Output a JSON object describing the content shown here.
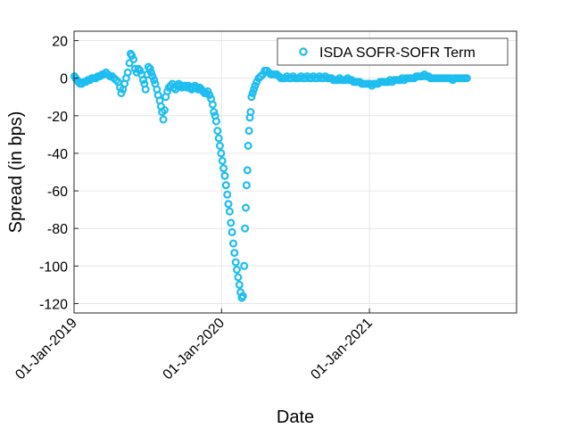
{
  "chart_data": {
    "type": "scatter",
    "title": "",
    "xlabel": "Date",
    "ylabel": "Spread (in bps)",
    "x_tick_labels": [
      "01-Jan-2019",
      "01-Jan-2020",
      "01-Jan-2021"
    ],
    "x_tick_dates": [
      "2019-01-01",
      "2020-01-01",
      "2021-01-01"
    ],
    "xlim": [
      "2019-01-01",
      "2021-12-31"
    ],
    "y_ticks": [
      20,
      0,
      -20,
      -40,
      -60,
      -80,
      -100,
      -120
    ],
    "ylim": [
      -125,
      25
    ],
    "grid": true,
    "legend_position": "top-right",
    "marker": "circle",
    "colors": {
      "series": "#1ebdf0"
    },
    "series": [
      {
        "name": "ISDA SOFR-SOFR Term",
        "points": [
          [
            "2019-01-02",
            1
          ],
          [
            "2019-01-05",
            0
          ],
          [
            "2019-01-09",
            -1
          ],
          [
            "2019-01-12",
            -2
          ],
          [
            "2019-01-16",
            -3
          ],
          [
            "2019-01-20",
            -3
          ],
          [
            "2019-01-25",
            -2
          ],
          [
            "2019-01-30",
            -2
          ],
          [
            "2019-02-04",
            -1
          ],
          [
            "2019-02-09",
            -1
          ],
          [
            "2019-02-14",
            0
          ],
          [
            "2019-02-19",
            0
          ],
          [
            "2019-02-24",
            0
          ],
          [
            "2019-03-01",
            1
          ],
          [
            "2019-03-06",
            1
          ],
          [
            "2019-03-11",
            2
          ],
          [
            "2019-03-16",
            2
          ],
          [
            "2019-03-21",
            3
          ],
          [
            "2019-03-26",
            2
          ],
          [
            "2019-03-31",
            1
          ],
          [
            "2019-04-05",
            1
          ],
          [
            "2019-04-10",
            0
          ],
          [
            "2019-04-15",
            -1
          ],
          [
            "2019-04-20",
            -2
          ],
          [
            "2019-04-25",
            -5
          ],
          [
            "2019-04-28",
            -8
          ],
          [
            "2019-05-02",
            -6
          ],
          [
            "2019-05-06",
            -3
          ],
          [
            "2019-05-10",
            0
          ],
          [
            "2019-05-14",
            3
          ],
          [
            "2019-05-18",
            8
          ],
          [
            "2019-05-21",
            13
          ],
          [
            "2019-05-24",
            12
          ],
          [
            "2019-05-28",
            10
          ],
          [
            "2019-06-01",
            5
          ],
          [
            "2019-06-05",
            3
          ],
          [
            "2019-06-09",
            5
          ],
          [
            "2019-06-13",
            4
          ],
          [
            "2019-06-17",
            2
          ],
          [
            "2019-06-21",
            -1
          ],
          [
            "2019-06-24",
            -3
          ],
          [
            "2019-06-27",
            -6
          ],
          [
            "2019-07-01",
            2
          ],
          [
            "2019-07-04",
            6
          ],
          [
            "2019-07-08",
            5
          ],
          [
            "2019-07-11",
            3
          ],
          [
            "2019-07-14",
            1
          ],
          [
            "2019-07-18",
            -1
          ],
          [
            "2019-07-21",
            -3
          ],
          [
            "2019-07-25",
            -6
          ],
          [
            "2019-07-28",
            -9
          ],
          [
            "2019-08-01",
            -12
          ],
          [
            "2019-08-04",
            -15
          ],
          [
            "2019-08-07",
            -18
          ],
          [
            "2019-08-10",
            -22
          ],
          [
            "2019-08-13",
            -17
          ],
          [
            "2019-08-16",
            -10
          ],
          [
            "2019-08-20",
            -7
          ],
          [
            "2019-08-24",
            -5
          ],
          [
            "2019-08-28",
            -4
          ],
          [
            "2019-09-01",
            -3
          ],
          [
            "2019-09-05",
            -5
          ],
          [
            "2019-09-09",
            -6
          ],
          [
            "2019-09-13",
            -4
          ],
          [
            "2019-09-17",
            -3
          ],
          [
            "2019-09-21",
            -4
          ],
          [
            "2019-09-25",
            -5
          ],
          [
            "2019-09-29",
            -4
          ],
          [
            "2019-10-03",
            -4
          ],
          [
            "2019-10-07",
            -5
          ],
          [
            "2019-10-11",
            -4
          ],
          [
            "2019-10-15",
            -5
          ],
          [
            "2019-10-19",
            -6
          ],
          [
            "2019-10-23",
            -5
          ],
          [
            "2019-10-27",
            -4
          ],
          [
            "2019-10-31",
            -5
          ],
          [
            "2019-11-04",
            -6
          ],
          [
            "2019-11-08",
            -5
          ],
          [
            "2019-11-12",
            -6
          ],
          [
            "2019-11-16",
            -7
          ],
          [
            "2019-11-20",
            -8
          ],
          [
            "2019-11-24",
            -8
          ],
          [
            "2019-11-28",
            -7
          ],
          [
            "2019-12-02",
            -9
          ],
          [
            "2019-12-06",
            -11
          ],
          [
            "2019-12-10",
            -14
          ],
          [
            "2019-12-13",
            -18
          ],
          [
            "2019-12-16",
            -20
          ],
          [
            "2019-12-19",
            -23
          ],
          [
            "2019-12-22",
            -28
          ],
          [
            "2019-12-25",
            -32
          ],
          [
            "2019-12-28",
            -36
          ],
          [
            "2019-12-31",
            -40
          ],
          [
            "2020-01-03",
            -44
          ],
          [
            "2020-01-06",
            -48
          ],
          [
            "2020-01-09",
            -52
          ],
          [
            "2020-01-12",
            -57
          ],
          [
            "2020-01-15",
            -62
          ],
          [
            "2020-01-18",
            -67
          ],
          [
            "2020-01-21",
            -71
          ],
          [
            "2020-01-24",
            -77
          ],
          [
            "2020-01-27",
            -82
          ],
          [
            "2020-01-30",
            -88
          ],
          [
            "2020-02-02",
            -93
          ],
          [
            "2020-02-05",
            -98
          ],
          [
            "2020-02-08",
            -102
          ],
          [
            "2020-02-11",
            -106
          ],
          [
            "2020-02-14",
            -110
          ],
          [
            "2020-02-17",
            -114
          ],
          [
            "2020-02-20",
            -117
          ],
          [
            "2020-02-23",
            -116
          ],
          [
            "2020-02-26",
            -100
          ],
          [
            "2020-02-28",
            -80
          ],
          [
            "2020-03-01",
            -69
          ],
          [
            "2020-03-03",
            -57
          ],
          [
            "2020-03-05",
            -49
          ],
          [
            "2020-03-07",
            -36
          ],
          [
            "2020-03-09",
            -28
          ],
          [
            "2020-03-11",
            -21
          ],
          [
            "2020-03-13",
            -18
          ],
          [
            "2020-03-15",
            -10
          ],
          [
            "2020-03-18",
            -8
          ],
          [
            "2020-03-21",
            -6
          ],
          [
            "2020-03-24",
            -4
          ],
          [
            "2020-03-28",
            -2
          ],
          [
            "2020-04-02",
            0
          ],
          [
            "2020-04-07",
            1
          ],
          [
            "2020-04-12",
            2
          ],
          [
            "2020-04-17",
            4
          ],
          [
            "2020-04-22",
            4
          ],
          [
            "2020-04-27",
            3
          ],
          [
            "2020-05-02",
            2
          ],
          [
            "2020-05-07",
            2
          ],
          [
            "2020-05-12",
            2
          ],
          [
            "2020-05-17",
            2
          ],
          [
            "2020-05-22",
            1
          ],
          [
            "2020-05-27",
            0
          ],
          [
            "2020-06-01",
            0
          ],
          [
            "2020-06-06",
            0
          ],
          [
            "2020-06-11",
            1
          ],
          [
            "2020-06-16",
            0
          ],
          [
            "2020-06-21",
            0
          ],
          [
            "2020-06-26",
            1
          ],
          [
            "2020-07-01",
            0
          ],
          [
            "2020-07-06",
            0
          ],
          [
            "2020-07-11",
            0
          ],
          [
            "2020-07-16",
            1
          ],
          [
            "2020-07-21",
            0
          ],
          [
            "2020-07-26",
            0
          ],
          [
            "2020-07-31",
            1
          ],
          [
            "2020-08-05",
            0
          ],
          [
            "2020-08-10",
            0
          ],
          [
            "2020-08-15",
            1
          ],
          [
            "2020-08-20",
            0
          ],
          [
            "2020-08-25",
            0
          ],
          [
            "2020-08-30",
            1
          ],
          [
            "2020-09-04",
            0
          ],
          [
            "2020-09-09",
            0
          ],
          [
            "2020-09-14",
            1
          ],
          [
            "2020-09-19",
            0
          ],
          [
            "2020-09-24",
            0
          ],
          [
            "2020-09-29",
            0
          ],
          [
            "2020-10-04",
            -1
          ],
          [
            "2020-10-09",
            -1
          ],
          [
            "2020-10-14",
            -1
          ],
          [
            "2020-10-19",
            0
          ],
          [
            "2020-10-24",
            -1
          ],
          [
            "2020-10-29",
            -1
          ],
          [
            "2020-11-03",
            -1
          ],
          [
            "2020-11-08",
            0
          ],
          [
            "2020-11-13",
            -1
          ],
          [
            "2020-11-18",
            -1
          ],
          [
            "2020-11-23",
            -2
          ],
          [
            "2020-11-28",
            -2
          ],
          [
            "2020-12-03",
            -2
          ],
          [
            "2020-12-08",
            -2
          ],
          [
            "2020-12-13",
            -3
          ],
          [
            "2020-12-18",
            -3
          ],
          [
            "2020-12-23",
            -3
          ],
          [
            "2020-12-28",
            -3
          ],
          [
            "2021-01-02",
            -3
          ],
          [
            "2021-01-07",
            -4
          ],
          [
            "2021-01-12",
            -3
          ],
          [
            "2021-01-17",
            -3
          ],
          [
            "2021-01-22",
            -3
          ],
          [
            "2021-01-27",
            -2
          ],
          [
            "2021-02-01",
            -2
          ],
          [
            "2021-02-06",
            -2
          ],
          [
            "2021-02-11",
            -2
          ],
          [
            "2021-02-16",
            -2
          ],
          [
            "2021-02-21",
            -1
          ],
          [
            "2021-02-26",
            -2
          ],
          [
            "2021-03-03",
            -1
          ],
          [
            "2021-03-08",
            -1
          ],
          [
            "2021-03-13",
            -1
          ],
          [
            "2021-03-18",
            -1
          ],
          [
            "2021-03-23",
            0
          ],
          [
            "2021-03-28",
            -1
          ],
          [
            "2021-04-02",
            0
          ],
          [
            "2021-04-07",
            0
          ],
          [
            "2021-04-12",
            0
          ],
          [
            "2021-04-17",
            0
          ],
          [
            "2021-04-22",
            0
          ],
          [
            "2021-04-27",
            1
          ],
          [
            "2021-05-02",
            1
          ],
          [
            "2021-05-07",
            1
          ],
          [
            "2021-05-12",
            1
          ],
          [
            "2021-05-17",
            2
          ],
          [
            "2021-05-22",
            1
          ],
          [
            "2021-05-27",
            1
          ],
          [
            "2021-06-01",
            0
          ],
          [
            "2021-06-06",
            0
          ],
          [
            "2021-06-11",
            0
          ],
          [
            "2021-06-16",
            0
          ],
          [
            "2021-06-21",
            0
          ],
          [
            "2021-06-26",
            0
          ],
          [
            "2021-07-01",
            0
          ],
          [
            "2021-07-06",
            0
          ],
          [
            "2021-07-11",
            0
          ],
          [
            "2021-07-16",
            0
          ],
          [
            "2021-07-21",
            0
          ],
          [
            "2021-07-26",
            -1
          ],
          [
            "2021-07-31",
            0
          ],
          [
            "2021-08-05",
            0
          ],
          [
            "2021-08-10",
            0
          ],
          [
            "2021-08-15",
            0
          ],
          [
            "2021-08-20",
            0
          ],
          [
            "2021-08-25",
            0
          ],
          [
            "2021-08-30",
            0
          ]
        ]
      }
    ]
  }
}
